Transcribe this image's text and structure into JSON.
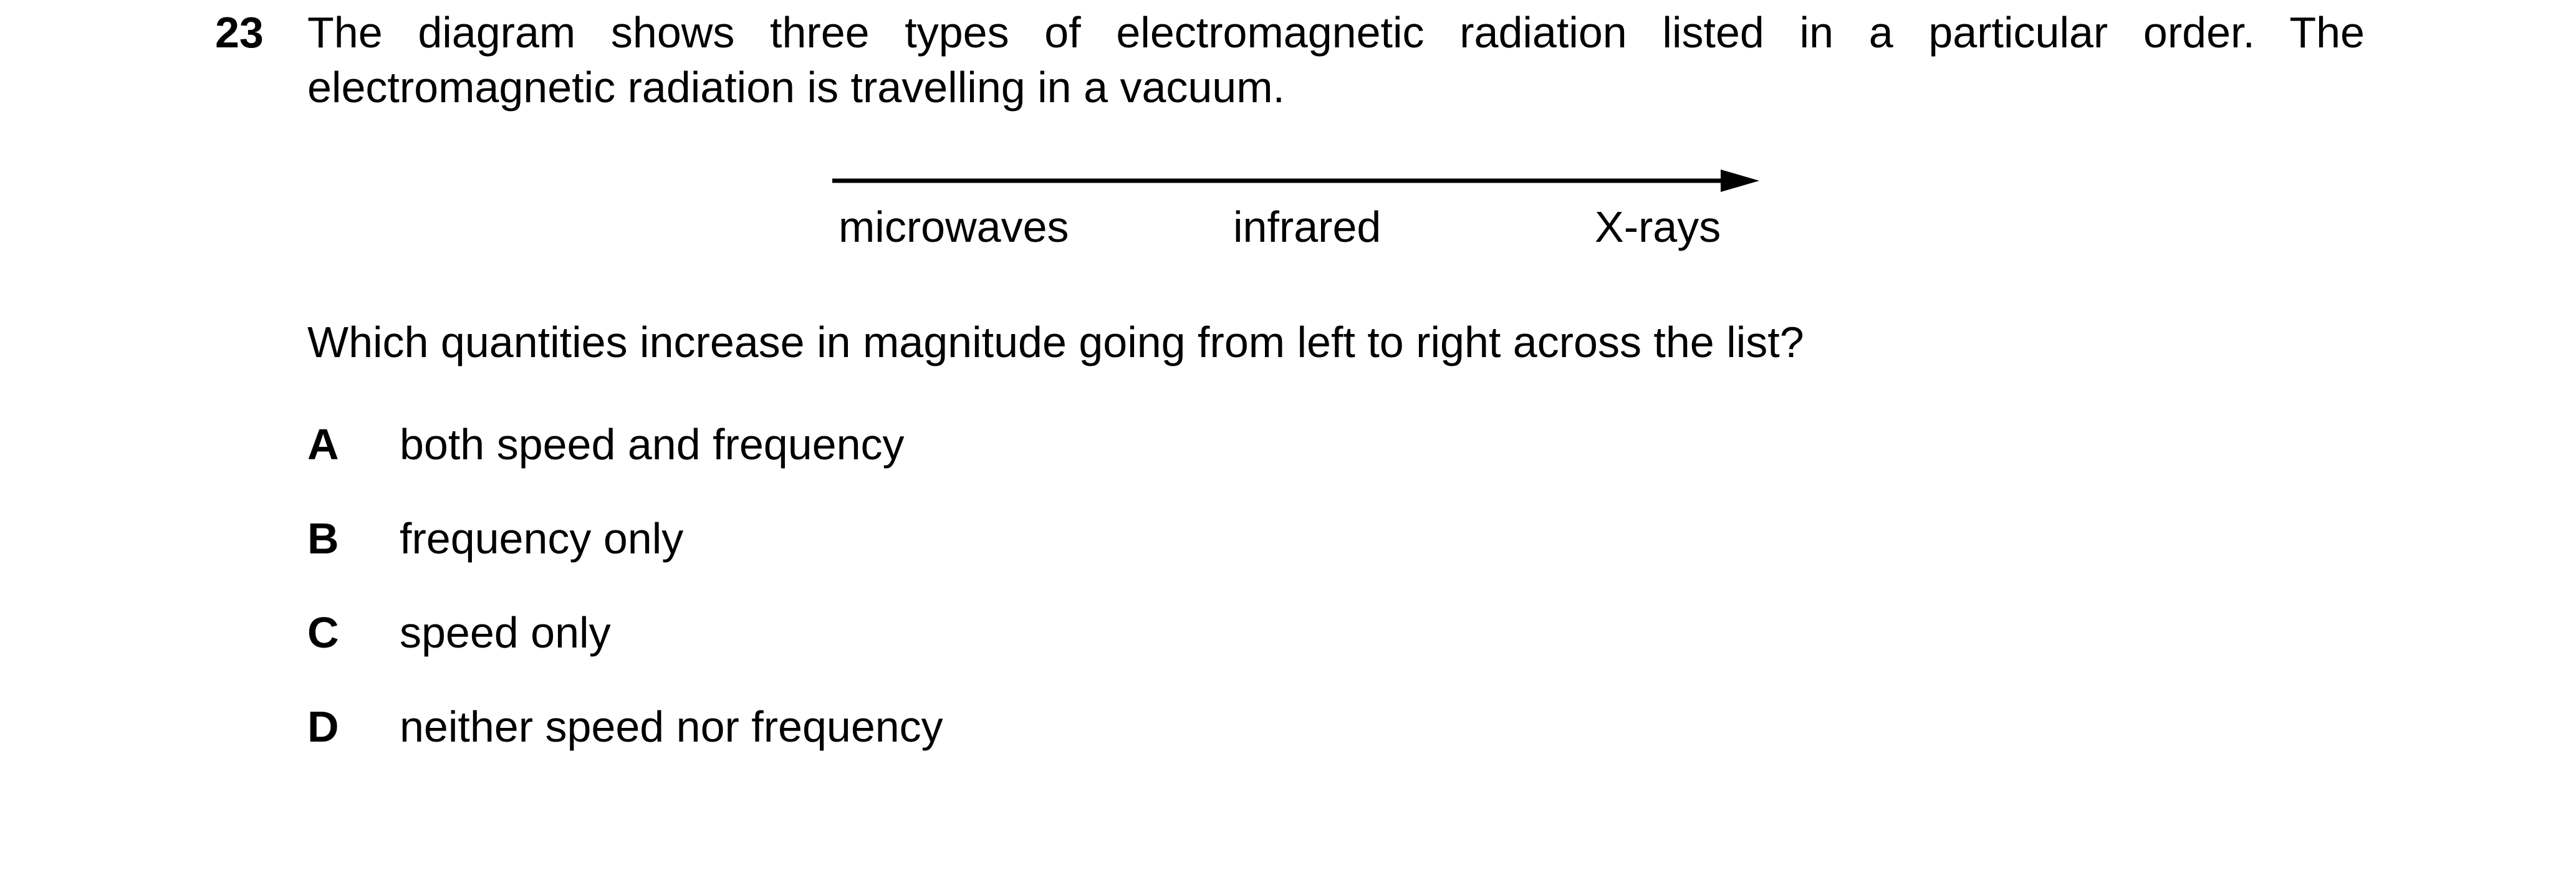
{
  "question": {
    "number": "23",
    "stem_line1": "The diagram shows three types of electromagnetic radiation listed in a particular order. The",
    "stem_line2": "electromagnetic radiation is travelling in a vacuum.",
    "diagram_labels": [
      "microwaves",
      "infrared",
      "X-rays"
    ],
    "prompt": "Which quantities increase in magnitude going from left to right across the list?"
  },
  "options": [
    {
      "letter": "A",
      "text": "both speed and frequency"
    },
    {
      "letter": "B",
      "text": "frequency only"
    },
    {
      "letter": "C",
      "text": "speed only"
    },
    {
      "letter": "D",
      "text": "neither speed nor frequency"
    }
  ]
}
